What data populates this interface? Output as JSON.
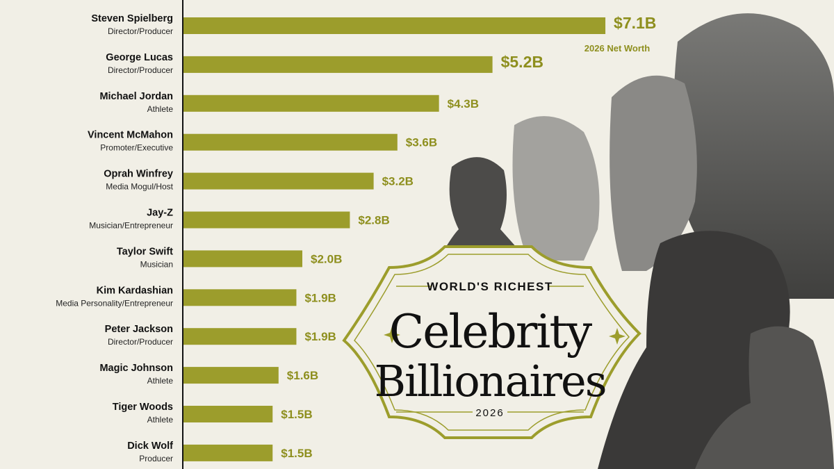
{
  "chart_data": {
    "type": "bar",
    "orientation": "horizontal",
    "title_kicker": "WORLD'S RICHEST",
    "title_line1": "Celebrity",
    "title_line2": "Billionaires",
    "title_year": "2026",
    "value_note": "2026 Net Worth",
    "categories": [
      "Steven Spielberg",
      "George Lucas",
      "Michael Jordan",
      "Vincent McMahon",
      "Oprah Winfrey",
      "Jay-Z",
      "Taylor Swift",
      "Kim Kardashian",
      "Peter Jackson",
      "Magic Johnson",
      "Tiger Woods",
      "Dick Wolf"
    ],
    "roles": [
      "Director/Producer",
      "Director/Producer",
      "Athlete",
      "Promoter/Executive",
      "Media Mogul/Host",
      "Musician/Entrepreneur",
      "Musician",
      "Media Personality/Entrepreneur",
      "Director/Producer",
      "Athlete",
      "Athlete",
      "Producer"
    ],
    "values": [
      7.1,
      5.2,
      4.3,
      3.6,
      3.2,
      2.8,
      2.0,
      1.9,
      1.9,
      1.6,
      1.5,
      1.5
    ],
    "value_labels": [
      "$7.1B",
      "$5.2B",
      "$4.3B",
      "$3.6B",
      "$3.2B",
      "$2.8B",
      "$2.0B",
      "$1.9B",
      "$1.9B",
      "$1.6B",
      "$1.5B",
      "$1.5B"
    ],
    "color": "#9c9d2c",
    "label_color": "#8e8f1e"
  }
}
